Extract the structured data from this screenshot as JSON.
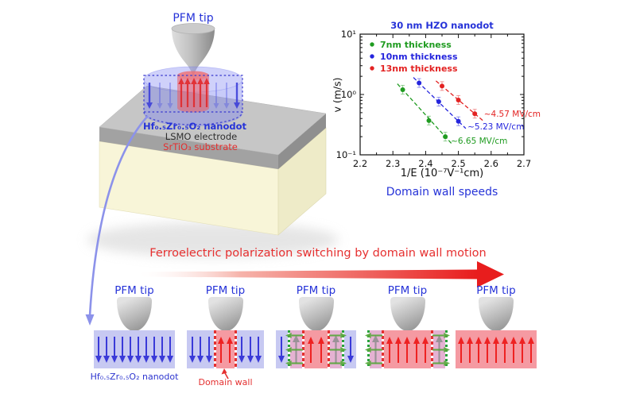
{
  "schematic": {
    "tip_label": "PFM tip",
    "nanodot_label": "Hf₀.₅Zr₀.₅O₂ nanodot",
    "electrode_label": "LSMO electrode",
    "substrate_label": "SrTiO₃ substrate"
  },
  "chart_data": {
    "type": "scatter",
    "title": "30 nm HZO nanodot",
    "xlabel": "1/E (10⁻⁷V⁻¹cm)",
    "ylabel": "v (m/s)",
    "caption": "Domain wall speeds",
    "xlim": [
      2.2,
      2.7
    ],
    "ylim": [
      0.1,
      10
    ],
    "yscale": "log",
    "grid": false,
    "legend_position": "upper-left",
    "xticks": [
      2.2,
      2.3,
      2.4,
      2.5,
      2.6,
      2.7
    ],
    "xtick_minor": [
      2.25,
      2.35,
      2.45,
      2.55,
      2.65
    ],
    "ytick_values": [
      0.1,
      1,
      10
    ],
    "ytick_labels": [
      "10⁻¹",
      "10⁰",
      "10¹"
    ],
    "series": [
      {
        "name": "7nm thickness",
        "color": "#1f9b20",
        "x": [
          2.33,
          2.41,
          2.46
        ],
        "y": [
          1.2,
          0.37,
          0.2
        ],
        "annotation": "~6.65 MV/cm",
        "ann_x": 2.477,
        "ann_y": 0.152
      },
      {
        "name": "10nm thickness",
        "color": "#2525dd",
        "x": [
          2.38,
          2.44,
          2.5
        ],
        "y": [
          1.55,
          0.76,
          0.36
        ],
        "annotation": "~5.23 MV/cm",
        "ann_x": 2.528,
        "ann_y": 0.262
      },
      {
        "name": "13nm thickness",
        "color": "#e32222",
        "x": [
          2.45,
          2.5,
          2.55
        ],
        "y": [
          1.38,
          0.81,
          0.48
        ],
        "annotation": "~4.57 MV/cm",
        "ann_x": 2.578,
        "ann_y": 0.43
      }
    ]
  },
  "process": {
    "heading": "Ferroelectric polarization switching by domain wall motion",
    "panels": [
      {
        "tip_label": "PFM tip",
        "caption": "Hf₀.₅Zr₀.₅O₂ nanodot",
        "caption_color": "#2d35cf",
        "segments": [
          {
            "type": "down",
            "count": 10
          }
        ]
      },
      {
        "tip_label": "PFM tip",
        "caption": "Domain wall",
        "caption_color": "#e43030",
        "caption_pointer": true,
        "segments": [
          {
            "type": "down",
            "count": 3
          },
          {
            "type": "wall-red"
          },
          {
            "type": "up",
            "count": 2
          },
          {
            "type": "wall-red"
          },
          {
            "type": "down",
            "count": 3
          }
        ]
      },
      {
        "tip_label": "PFM tip",
        "segments": [
          {
            "type": "down",
            "count": 1
          },
          {
            "type": "wall-green"
          },
          {
            "type": "mixed",
            "dir": "left"
          },
          {
            "type": "wall-red"
          },
          {
            "type": "up",
            "count": 2
          },
          {
            "type": "wall-red"
          },
          {
            "type": "mixed",
            "dir": "right"
          },
          {
            "type": "wall-green"
          },
          {
            "type": "down",
            "count": 1
          }
        ]
      },
      {
        "tip_label": "PFM tip",
        "segments": [
          {
            "type": "wall-green"
          },
          {
            "type": "mixed",
            "dir": "left"
          },
          {
            "type": "wall-red"
          },
          {
            "type": "up",
            "count": 5
          },
          {
            "type": "wall-red"
          },
          {
            "type": "mixed",
            "dir": "right"
          },
          {
            "type": "wall-green"
          }
        ]
      },
      {
        "tip_label": "PFM tip",
        "segments": [
          {
            "type": "up",
            "count": 9
          }
        ]
      }
    ]
  },
  "colors": {
    "accent_blue": "#2633d8",
    "accent_red": "#e63030",
    "panel_blue_bg": "#c7c9f2",
    "panel_red_bg": "#f59aa2",
    "panel_pink_bg": "#e5b2d2",
    "arrow_blue": "#3a3ad8",
    "arrow_red": "#ee2222",
    "arrow_gray": "#8d8d8d",
    "arrow_green": "#57a83b",
    "wall_red": "#e43030",
    "wall_green": "#27a23b"
  }
}
